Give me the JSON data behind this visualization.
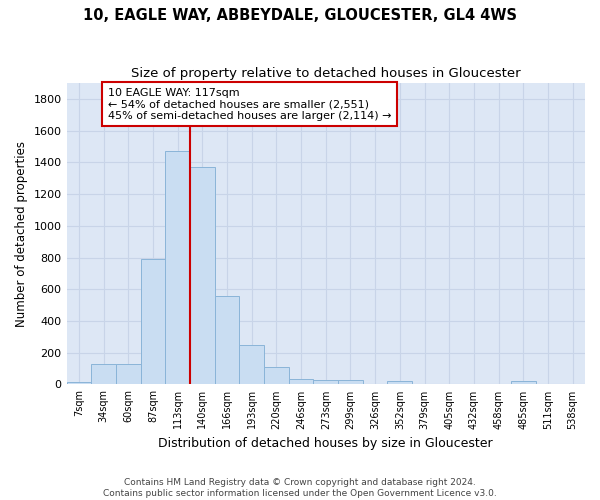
{
  "title1": "10, EAGLE WAY, ABBEYDALE, GLOUCESTER, GL4 4WS",
  "title2": "Size of property relative to detached houses in Gloucester",
  "xlabel": "Distribution of detached houses by size in Gloucester",
  "ylabel": "Number of detached properties",
  "footer1": "Contains HM Land Registry data © Crown copyright and database right 2024.",
  "footer2": "Contains public sector information licensed under the Open Government Licence v3.0.",
  "bin_labels": [
    "7sqm",
    "34sqm",
    "60sqm",
    "87sqm",
    "113sqm",
    "140sqm",
    "166sqm",
    "193sqm",
    "220sqm",
    "246sqm",
    "273sqm",
    "299sqm",
    "326sqm",
    "352sqm",
    "379sqm",
    "405sqm",
    "432sqm",
    "458sqm",
    "485sqm",
    "511sqm",
    "538sqm"
  ],
  "bar_values": [
    15,
    130,
    130,
    790,
    1470,
    1370,
    560,
    250,
    110,
    35,
    30,
    30,
    0,
    20,
    0,
    0,
    0,
    0,
    20,
    0,
    0
  ],
  "bar_color": "#c9ddf2",
  "bar_edge_color": "#8ab4d8",
  "grid_color": "#c8d4e8",
  "bg_color": "#dde7f5",
  "red_line_x": 4.5,
  "annotation_line1": "10 EAGLE WAY: 117sqm",
  "annotation_line2": "← 54% of detached houses are smaller (2,551)",
  "annotation_line3": "45% of semi-detached houses are larger (2,114) →",
  "annotation_box_color": "#cc0000",
  "ylim": [
    0,
    1900
  ],
  "yticks": [
    0,
    200,
    400,
    600,
    800,
    1000,
    1200,
    1400,
    1600,
    1800
  ]
}
